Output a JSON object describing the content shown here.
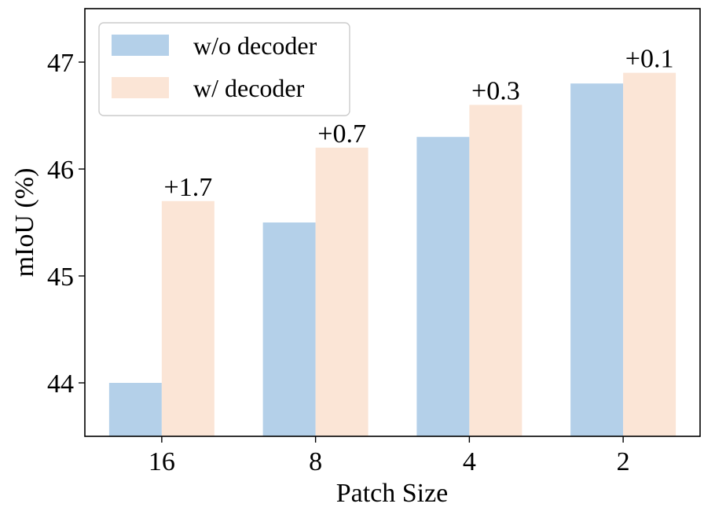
{
  "chart_data": {
    "type": "bar",
    "categories": [
      "16",
      "8",
      "4",
      "2"
    ],
    "series": [
      {
        "name": "w/o decoder",
        "values": [
          44.0,
          45.5,
          46.3,
          46.8
        ],
        "color": "#b4d0e9"
      },
      {
        "name": "w/ decoder",
        "values": [
          45.7,
          46.2,
          46.6,
          46.9
        ],
        "color": "#fbe5d6"
      }
    ],
    "annotations": [
      "+1.7",
      "+0.7",
      "+0.3",
      "+0.1"
    ],
    "xlabel": "Patch Size",
    "ylabel": "mIoU (%)",
    "ylim": [
      43.5,
      47.5
    ],
    "yticks": [
      44,
      45,
      46,
      47
    ],
    "legend_position": "top-left",
    "grid": false
  }
}
